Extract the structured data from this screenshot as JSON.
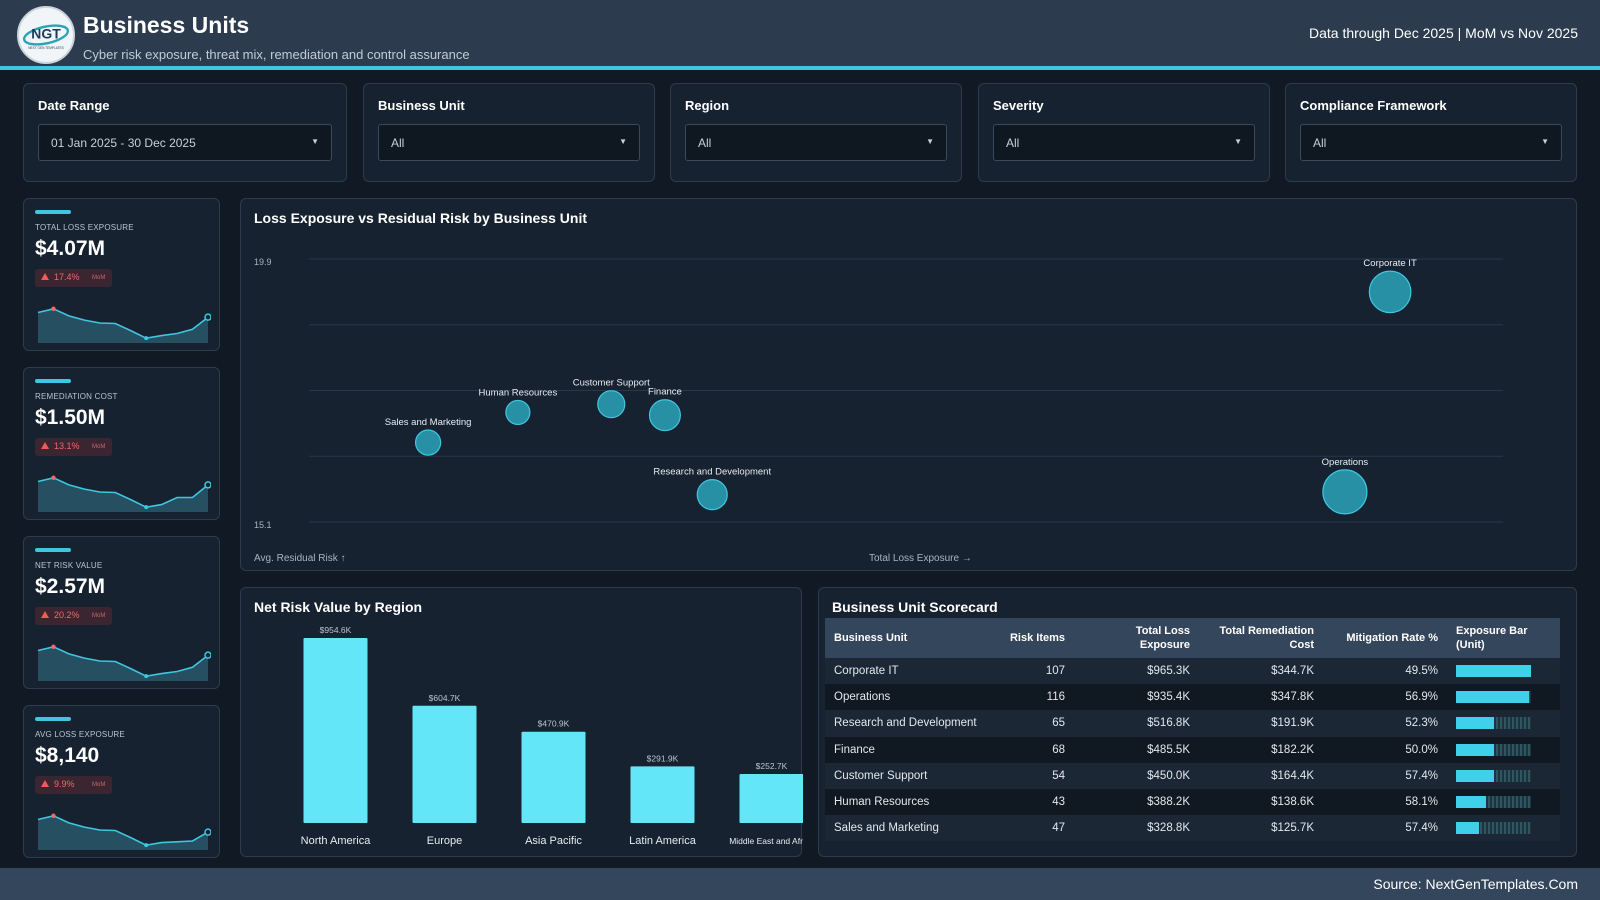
{
  "header": {
    "logo_text": "NGT",
    "logo_subtext": "NEXT GEN TEMPLATES",
    "title": "Business Units",
    "subtitle": "Cyber risk exposure, threat mix, remediation and control assurance",
    "data_note": "Data through Dec 2025 | MoM vs Nov 2025"
  },
  "colors": {
    "accent": "#3fc6e0",
    "bubble": "#2aa3b8",
    "bar": "#63e6f7",
    "negative": "#ef5b5b",
    "background": "#111a24"
  },
  "filters": [
    {
      "label": "Date Range",
      "value": "01 Jan 2025 - 30 Dec 2025"
    },
    {
      "label": "Business Unit",
      "value": "All"
    },
    {
      "label": "Region",
      "value": "All"
    },
    {
      "label": "Severity",
      "value": "All"
    },
    {
      "label": "Compliance Framework",
      "value": "All"
    }
  ],
  "kpis": [
    {
      "label": "TOTAL LOSS EXPOSURE",
      "value": "$4.07M",
      "delta": "17.4%",
      "delta_label": "MoM"
    },
    {
      "label": "REMEDIATION COST",
      "value": "$1.50M",
      "delta": "13.1%",
      "delta_label": "MoM"
    },
    {
      "label": "NET RISK VALUE",
      "value": "$2.57M",
      "delta": "20.2%",
      "delta_label": "MoM"
    },
    {
      "label": "AVG LOSS EXPOSURE",
      "value": "$8,140",
      "delta": "9.9%",
      "delta_label": "MoM"
    }
  ],
  "bubble_chart": {
    "title": "Loss Exposure vs Residual Risk by Business Unit",
    "xlabel": "Total Loss Exposure →",
    "ylabel": "Avg. Residual Risk ↑",
    "y_tick_top": "19.9",
    "y_tick_bottom": "15.1"
  },
  "bar_chart": {
    "title": "Net Risk Value by Region"
  },
  "table": {
    "title": "Business Unit Scorecard",
    "columns": [
      "Business Unit",
      "Risk Items",
      "Total Loss Exposure",
      "Total Remediation Cost",
      "Mitigation Rate %",
      "Exposure Bar (Unit)"
    ],
    "rows": [
      {
        "unit": "Corporate IT",
        "items": "107",
        "loss": "$965.3K",
        "remediation": "$344.7K",
        "mitigation": "49.5%",
        "bar_fraction": 1.0
      },
      {
        "unit": "Operations",
        "items": "116",
        "loss": "$935.4K",
        "remediation": "$347.8K",
        "mitigation": "56.9%",
        "bar_fraction": 0.97
      },
      {
        "unit": "Research and Development",
        "items": "65",
        "loss": "$516.8K",
        "remediation": "$191.9K",
        "mitigation": "52.3%",
        "bar_fraction": 0.5
      },
      {
        "unit": "Finance",
        "items": "68",
        "loss": "$485.5K",
        "remediation": "$182.2K",
        "mitigation": "50.0%",
        "bar_fraction": 0.5
      },
      {
        "unit": "Customer Support",
        "items": "54",
        "loss": "$450.0K",
        "remediation": "$164.4K",
        "mitigation": "57.4%",
        "bar_fraction": 0.5
      },
      {
        "unit": "Human Resources",
        "items": "43",
        "loss": "$388.2K",
        "remediation": "$138.6K",
        "mitigation": "58.1%",
        "bar_fraction": 0.4
      },
      {
        "unit": "Sales and Marketing",
        "items": "47",
        "loss": "$328.8K",
        "remediation": "$125.7K",
        "mitigation": "57.4%",
        "bar_fraction": 0.3
      }
    ]
  },
  "footer": {
    "source": "Source: NextGenTemplates.Com"
  },
  "chart_data": [
    {
      "type": "scatter",
      "title": "Loss Exposure vs Residual Risk by Business Unit",
      "xlabel": "Total Loss Exposure →",
      "ylabel": "Avg. Residual Risk ↑",
      "ylim": [
        15.1,
        19.9
      ],
      "grid": true,
      "points": [
        {
          "label": "Sales and Marketing",
          "x": 328.8,
          "y": 16.55
        },
        {
          "label": "Human Resources",
          "x": 388.2,
          "y": 17.1
        },
        {
          "label": "Customer Support",
          "x": 450.0,
          "y": 17.25
        },
        {
          "label": "Finance",
          "x": 485.5,
          "y": 17.05
        },
        {
          "label": "Research and Development",
          "x": 516.8,
          "y": 15.6
        },
        {
          "label": "Operations",
          "x": 935.4,
          "y": 15.65
        },
        {
          "label": "Corporate IT",
          "x": 965.3,
          "y": 19.3
        }
      ],
      "size_by": [
        47,
        43,
        54,
        68,
        65,
        116,
        107
      ]
    },
    {
      "type": "bar",
      "title": "Net Risk Value by Region",
      "categories": [
        "North America",
        "Europe",
        "Asia Pacific",
        "Latin America",
        "Middle East and Africa"
      ],
      "values": [
        954.6,
        604.7,
        470.9,
        291.9,
        252.7
      ],
      "data_labels": [
        "$954.6K",
        "$604.7K",
        "$470.9K",
        "$291.9K",
        "$252.7K"
      ]
    },
    {
      "type": "line",
      "title": "",
      "series": [
        {
          "values": [
            0.63,
            0.72,
            0.55,
            0.45,
            0.38,
            0.37,
            0.2,
            0.02,
            0.08,
            0.13,
            0.23,
            0.52
          ]
        },
        {
          "values": [
            0.63,
            0.72,
            0.55,
            0.45,
            0.38,
            0.37,
            0.2,
            0.02,
            0.08,
            0.25,
            0.25,
            0.55
          ]
        },
        {
          "values": [
            0.63,
            0.72,
            0.55,
            0.45,
            0.38,
            0.37,
            0.2,
            0.02,
            0.08,
            0.13,
            0.23,
            0.52
          ]
        },
        {
          "values": [
            0.63,
            0.72,
            0.55,
            0.45,
            0.38,
            0.37,
            0.2,
            0.02,
            0.08,
            0.1,
            0.12,
            0.33
          ]
        }
      ]
    }
  ]
}
